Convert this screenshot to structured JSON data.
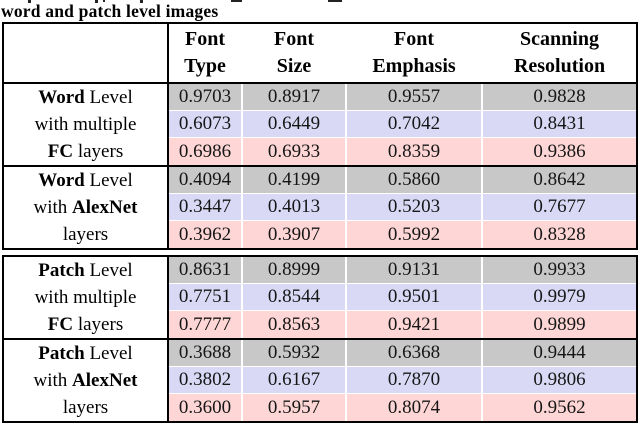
{
  "caption": "word and patch level images",
  "header": {
    "columns": [
      [
        "Font",
        "Type"
      ],
      [
        "Font",
        "Size"
      ],
      [
        "Font",
        "Emphasis"
      ],
      [
        "Scanning",
        "Resolution"
      ]
    ]
  },
  "row_colors": {
    "gray": "#c8c8c8",
    "lavender": "#d9d9f6",
    "pink": "#ffd6d6"
  },
  "sections": [
    {
      "name": "word-level",
      "groups": [
        {
          "label_lines": [
            [
              [
                "Word",
                true
              ],
              [
                " Level",
                false
              ]
            ],
            [
              [
                "with multiple",
                false
              ]
            ],
            [
              [
                "FC",
                true
              ],
              [
                " layers",
                false
              ]
            ]
          ],
          "rows": [
            {
              "color": "gray",
              "values": [
                "0.9703",
                "0.8917",
                "0.9557",
                "0.9828"
              ]
            },
            {
              "color": "lavender",
              "values": [
                "0.6073",
                "0.6449",
                "0.7042",
                "0.8431"
              ]
            },
            {
              "color": "pink",
              "values": [
                "0.6986",
                "0.6933",
                "0.8359",
                "0.9386"
              ]
            }
          ]
        },
        {
          "label_lines": [
            [
              [
                "Word",
                true
              ],
              [
                " Level",
                false
              ]
            ],
            [
              [
                "with ",
                false
              ],
              [
                "AlexNet",
                true
              ]
            ],
            [
              [
                "layers",
                false
              ]
            ]
          ],
          "rows": [
            {
              "color": "gray",
              "values": [
                "0.4094",
                "0.4199",
                "0.5860",
                "0.8642"
              ]
            },
            {
              "color": "lavender",
              "values": [
                "0.3447",
                "0.4013",
                "0.5203",
                "0.7677"
              ]
            },
            {
              "color": "pink",
              "values": [
                "0.3962",
                "0.3907",
                "0.5992",
                "0.8328"
              ]
            }
          ]
        }
      ]
    },
    {
      "name": "patch-level",
      "groups": [
        {
          "label_lines": [
            [
              [
                "Patch",
                true
              ],
              [
                " Level",
                false
              ]
            ],
            [
              [
                "with multiple",
                false
              ]
            ],
            [
              [
                "FC",
                true
              ],
              [
                " layers",
                false
              ]
            ]
          ],
          "rows": [
            {
              "color": "gray",
              "values": [
                "0.8631",
                "0.8999",
                "0.9131",
                "0.9933"
              ]
            },
            {
              "color": "lavender",
              "values": [
                "0.7751",
                "0.8544",
                "0.9501",
                "0.9979"
              ]
            },
            {
              "color": "pink",
              "values": [
                "0.7777",
                "0.8563",
                "0.9421",
                "0.9899"
              ]
            }
          ]
        },
        {
          "label_lines": [
            [
              [
                "Patch",
                true
              ],
              [
                " Level",
                false
              ]
            ],
            [
              [
                "with ",
                false
              ],
              [
                "AlexNet",
                true
              ]
            ],
            [
              [
                "layers",
                false
              ]
            ]
          ],
          "rows": [
            {
              "color": "gray",
              "values": [
                "0.3688",
                "0.5932",
                "0.6368",
                "0.9444"
              ]
            },
            {
              "color": "lavender",
              "values": [
                "0.3802",
                "0.6167",
                "0.7870",
                "0.9806"
              ]
            },
            {
              "color": "pink",
              "values": [
                "0.3600",
                "0.5957",
                "0.8074",
                "0.9562"
              ]
            }
          ]
        }
      ]
    }
  ]
}
